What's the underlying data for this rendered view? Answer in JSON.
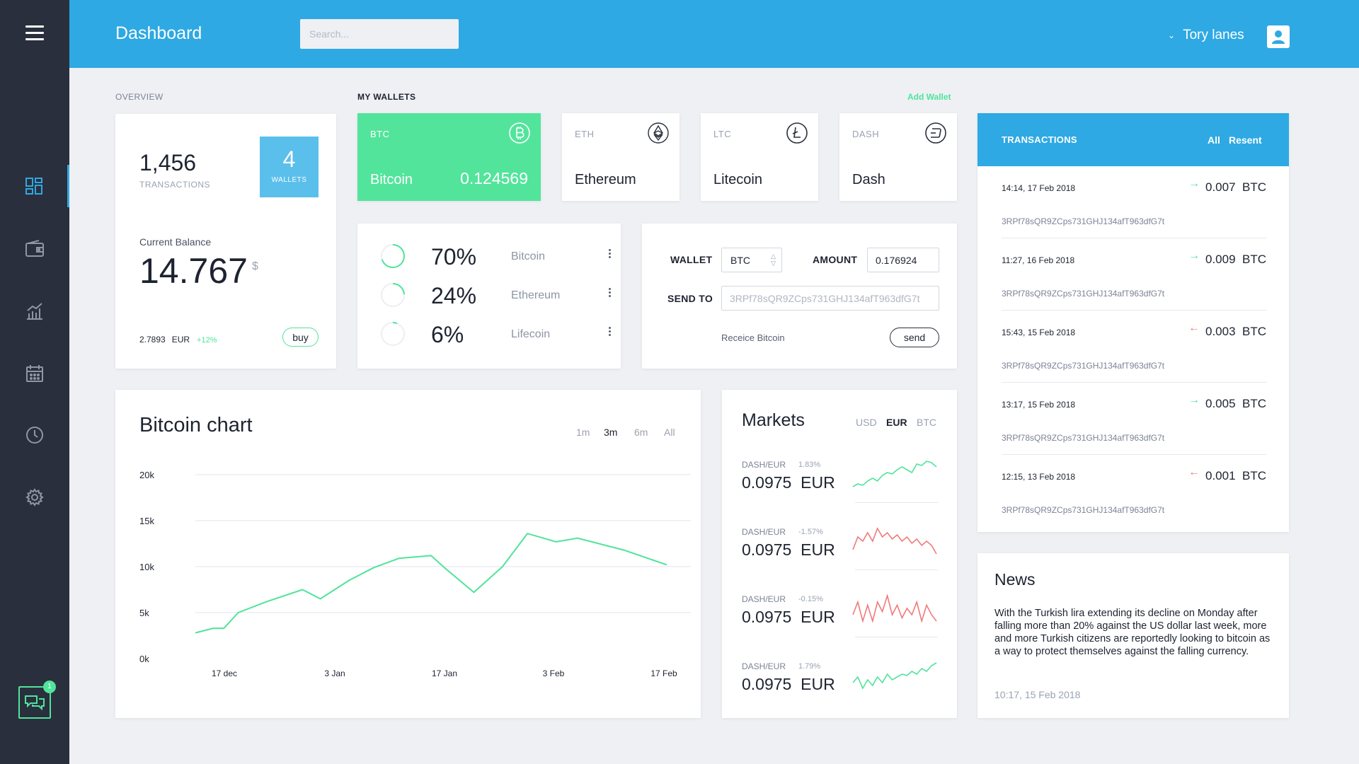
{
  "header": {
    "title": "Dashboard",
    "search_placeholder": "Search...",
    "user_name": "Tory lanes"
  },
  "sidebar": {
    "items": [
      {
        "name": "dashboard-icon",
        "active": true
      },
      {
        "name": "wallet-icon",
        "active": false
      },
      {
        "name": "stats-icon",
        "active": false
      },
      {
        "name": "calendar-icon",
        "active": false
      },
      {
        "name": "clock-icon",
        "active": false
      },
      {
        "name": "settings-icon",
        "active": false
      }
    ],
    "chat_badge": "1"
  },
  "overview": {
    "label": "OVERVIEW",
    "transactions_count": "1,456",
    "transactions_label": "TRANSACTIONS",
    "wallets_count": "4",
    "wallets_label": "WALLETS",
    "balance_label": "Current Balance",
    "balance_value": "14.767",
    "balance_unit": "$",
    "fiat_value": "2.7893",
    "fiat_currency": "EUR",
    "change": "+12%",
    "buy_label": "buy"
  },
  "wallets": {
    "label": "MY WALLETS",
    "add_label": "Add Wallet",
    "items": [
      {
        "symbol": "BTC",
        "name": "Bitcoin",
        "balance": "0.124569",
        "icon": "bitcoin-icon"
      },
      {
        "symbol": "ETH",
        "name": "Ethereum",
        "icon": "ethereum-icon"
      },
      {
        "symbol": "LTC",
        "name": "Litecoin",
        "icon": "litecoin-icon"
      },
      {
        "symbol": "DASH",
        "name": "Dash",
        "icon": "dash-icon"
      }
    ]
  },
  "allocation": [
    {
      "percent": "70%",
      "fraction": 0.7,
      "coin": "Bitcoin"
    },
    {
      "percent": "24%",
      "fraction": 0.24,
      "coin": "Ethereum"
    },
    {
      "percent": "6%",
      "fraction": 0.06,
      "coin": "Lifecoin"
    }
  ],
  "send": {
    "wallet_label": "WALLET",
    "wallet_value": "BTC",
    "amount_label": "AMOUNT",
    "amount_value": "0.176924",
    "send_to_label": "SEND TO",
    "send_to_value": "3RPf78sQR9ZCps731GHJ134afT963dfG7t",
    "receive_label": "Receice Bitcoin",
    "send_button": "send"
  },
  "chart": {
    "title": "Bitcoin chart",
    "ranges": [
      "1m",
      "3m",
      "6m",
      "All"
    ],
    "selected_range": "3m",
    "line_color": "#50e39c"
  },
  "chart_data": {
    "type": "line",
    "title": "Bitcoin chart",
    "y_ticks": [
      "20k",
      "15k",
      "10k",
      "5k",
      "0k"
    ],
    "x_ticks": [
      "17 dec",
      "3 Jan",
      "17 Jan",
      "3 Feb",
      "17 Feb"
    ],
    "ylim": [
      0,
      20000
    ],
    "grid": true,
    "x": [
      0,
      0.5,
      0.8,
      1.2,
      2.0,
      3.0,
      3.5,
      4.3,
      5.0,
      5.7,
      6.6,
      7.0,
      7.8,
      8.6,
      9.3,
      10.1,
      10.7,
      12.0,
      13.2
    ],
    "values": [
      2800,
      3300,
      3300,
      5000,
      6200,
      7500,
      6500,
      8500,
      9900,
      10900,
      11200,
      9800,
      7200,
      10000,
      13600,
      12700,
      13100,
      11800,
      10200
    ]
  },
  "markets": {
    "title": "Markets",
    "currencies": [
      "USD",
      "EUR",
      "BTC"
    ],
    "selected_currency": "EUR",
    "items": [
      {
        "pair": "DASH/EUR",
        "change": "1.83%",
        "price": "0.0975",
        "currency": "EUR",
        "trend": "up",
        "spark": [
          7,
          8,
          7.5,
          9,
          10,
          9,
          11,
          12,
          11.5,
          13,
          14,
          13,
          12,
          15,
          14.5,
          16,
          15.5,
          14
        ]
      },
      {
        "pair": "DASH/EUR",
        "change": "-1.57%",
        "price": "0.0975",
        "currency": "EUR",
        "trend": "down",
        "spark": [
          9,
          12,
          11,
          13,
          11,
          14,
          12,
          13,
          11.5,
          12.5,
          11,
          12,
          10.5,
          11.5,
          10,
          11,
          10,
          8
        ]
      },
      {
        "pair": "DASH/EUR",
        "change": "-0.15%",
        "price": "0.0975",
        "currency": "EUR",
        "trend": "down",
        "spark": [
          12,
          14,
          11,
          13.5,
          11,
          14,
          12.5,
          15,
          12,
          13.5,
          11.5,
          13,
          12,
          14,
          11,
          13.5,
          12,
          11
        ]
      },
      {
        "pair": "DASH/EUR",
        "change": "1.79%",
        "price": "0.0975",
        "currency": "EUR",
        "trend": "up",
        "spark": [
          10,
          12,
          8,
          11,
          9,
          12,
          10,
          13,
          11,
          12,
          13,
          12.5,
          14,
          13,
          15,
          14,
          16,
          17
        ]
      }
    ]
  },
  "transactions": {
    "title": "TRANSACTIONS",
    "filters": [
      "All",
      "Resent"
    ],
    "items": [
      {
        "time": "14:14, 17 Feb 2018",
        "direction": "in",
        "amount": "0.007",
        "currency": "BTC",
        "address": "3RPf78sQR9ZCps731GHJ134afT963dfG7t"
      },
      {
        "time": "11:27, 16 Feb 2018",
        "direction": "in",
        "amount": "0.009",
        "currency": "BTC",
        "address": "3RPf78sQR9ZCps731GHJ134afT963dfG7t"
      },
      {
        "time": "15:43, 15 Feb 2018",
        "direction": "out",
        "amount": "0.003",
        "currency": "BTC",
        "address": "3RPf78sQR9ZCps731GHJ134afT963dfG7t"
      },
      {
        "time": "13:17, 15 Feb 2018",
        "direction": "in",
        "amount": "0.005",
        "currency": "BTC",
        "address": "3RPf78sQR9ZCps731GHJ134afT963dfG7t"
      },
      {
        "time": "12:15, 13 Feb 2018",
        "direction": "out",
        "amount": "0.001",
        "currency": "BTC",
        "address": "3RPf78sQR9ZCps731GHJ134afT963dfG7t"
      }
    ]
  },
  "news": {
    "title": "News",
    "body": "With the Turkish lira extending its decline on Monday after falling more than 20% against the US dollar last week, more and more Turkish citizens are reportedly looking to bitcoin as a way to protect themselves against the falling currency.",
    "time": "10:17, 15 Feb 2018"
  },
  "colors": {
    "accent": "#2ea9e3",
    "positive": "#50e39c",
    "negative": "#f07a7a",
    "sidebar": "#2a2f3d"
  }
}
